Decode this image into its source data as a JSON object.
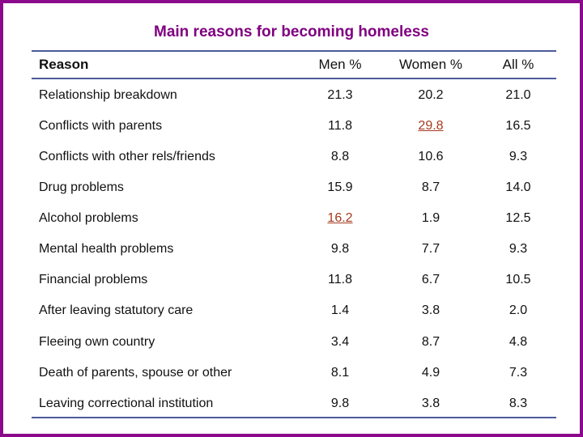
{
  "title": "Main reasons for becoming homeless",
  "columns": {
    "reason": "Reason",
    "men": "Men %",
    "women": "Women %",
    "all": "All %"
  },
  "rows": [
    {
      "reason": "Relationship breakdown",
      "men": "21.3",
      "women": "20.2",
      "all": "21.0"
    },
    {
      "reason": "Conflicts with parents",
      "men": "11.8",
      "women": "29.8",
      "all": "16.5"
    },
    {
      "reason": "Conflicts with other rels/friends",
      "men": "8.8",
      "women": "10.6",
      "all": "9.3"
    },
    {
      "reason": "Drug problems",
      "men": "15.9",
      "women": "8.7",
      "all": "14.0"
    },
    {
      "reason": "Alcohol problems",
      "men": "16.2",
      "women": "1.9",
      "all": "12.5"
    },
    {
      "reason": "Mental health problems",
      "men": "9.8",
      "women": "7.7",
      "all": "9.3"
    },
    {
      "reason": "Financial problems",
      "men": "11.8",
      "women": "6.7",
      "all": "10.5"
    },
    {
      "reason": "After leaving statutory care",
      "men": "1.4",
      "women": "3.8",
      "all": "2.0"
    },
    {
      "reason": "Fleeing own country",
      "men": "3.4",
      "women": "8.7",
      "all": "4.8"
    },
    {
      "reason": "Death of parents, spouse or other",
      "men": "8.1",
      "women": "4.9",
      "all": "7.3"
    },
    {
      "reason": "Leaving correctional institution",
      "men": "9.8",
      "women": "3.8",
      "all": "8.3"
    }
  ],
  "colors": {
    "frame": "#8b0a8b",
    "title": "#800080",
    "rule": "#4b5a9c",
    "highlight": "#a53a1e"
  }
}
